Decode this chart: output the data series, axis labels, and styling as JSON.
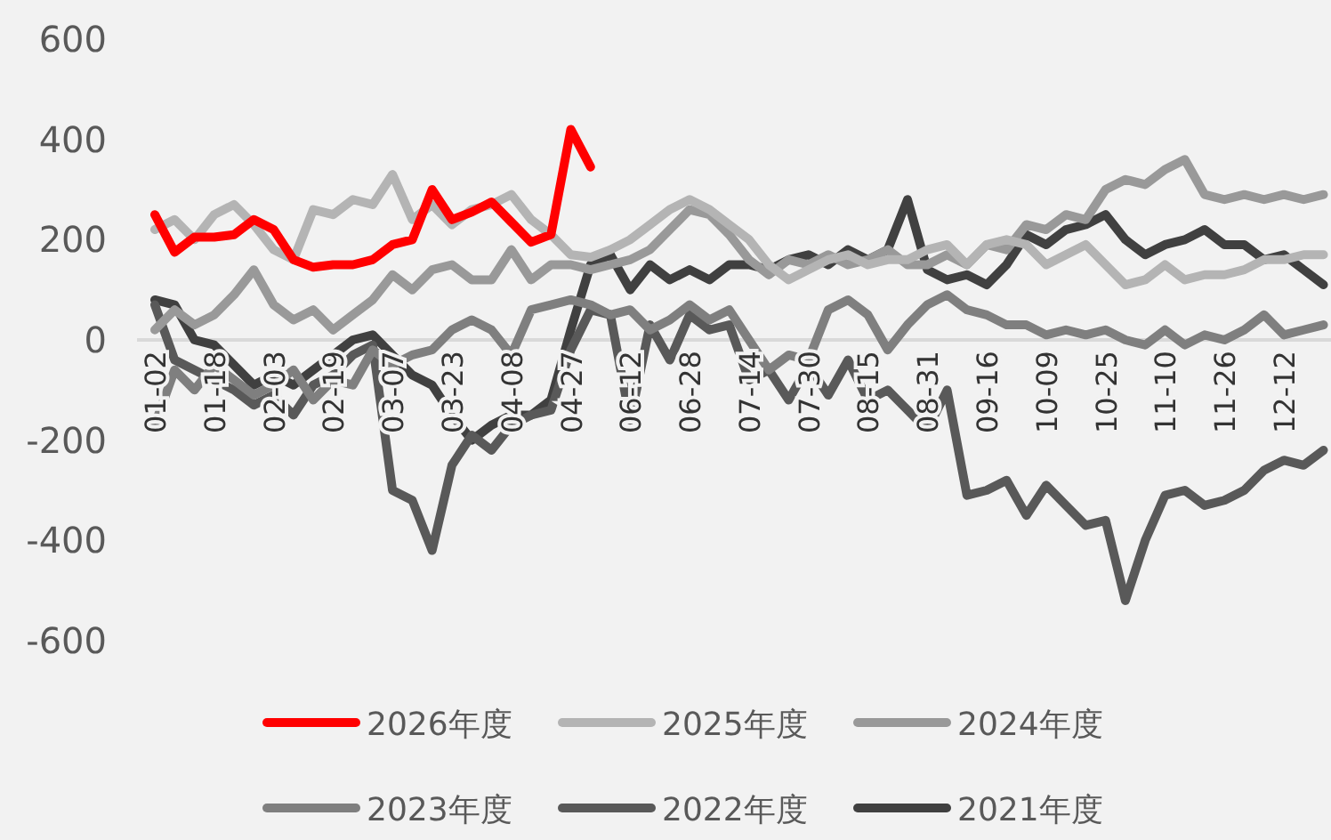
{
  "chart_data": {
    "type": "line",
    "categories": [
      "01-02",
      null,
      null,
      "01-18",
      null,
      null,
      "02-03",
      null,
      null,
      "02-19",
      null,
      null,
      "03-07",
      null,
      null,
      "03-23",
      null,
      null,
      "04-08",
      null,
      null,
      "04-27",
      null,
      null,
      "06-12",
      null,
      null,
      "06-28",
      null,
      null,
      "07-14",
      null,
      null,
      "07-30",
      null,
      null,
      "08-15",
      null,
      null,
      "08-31",
      null,
      null,
      "09-16",
      null,
      null,
      "10-09",
      null,
      null,
      "10-25",
      null,
      null,
      "11-10",
      null,
      null,
      "11-26",
      null,
      null,
      "12-12",
      null,
      null
    ],
    "ylim": [
      -600,
      600
    ],
    "yticks": [
      -600,
      -400,
      -200,
      0,
      200,
      400,
      600
    ],
    "grid": false,
    "legend": "bottom",
    "series": [
      {
        "name": "2026年度",
        "color": "#ff0000",
        "values": [
          250,
          175,
          205,
          205,
          210,
          240,
          220,
          160,
          145,
          150,
          150,
          160,
          190,
          200,
          300,
          240,
          255,
          275,
          235,
          195,
          210,
          420,
          345,
          null,
          null,
          null,
          null,
          null,
          null,
          null,
          null,
          null,
          null,
          null,
          null,
          null,
          null,
          null,
          null,
          null,
          null,
          null,
          null,
          null,
          null,
          null,
          null,
          null,
          null,
          null,
          null,
          null,
          null,
          null,
          null,
          null,
          null,
          null,
          null,
          null
        ]
      },
      {
        "name": "2025年度",
        "color": "#b4b4b4",
        "values": [
          220,
          240,
          200,
          250,
          270,
          230,
          180,
          160,
          260,
          250,
          280,
          270,
          330,
          240,
          270,
          230,
          260,
          270,
          290,
          240,
          210,
          170,
          165,
          180,
          200,
          230,
          260,
          280,
          260,
          230,
          200,
          150,
          120,
          140,
          160,
          170,
          150,
          160,
          160,
          180,
          190,
          150,
          190,
          200,
          190,
          150,
          170,
          190,
          150,
          110,
          120,
          150,
          120,
          130,
          130,
          140,
          160,
          160,
          170,
          170
        ]
      },
      {
        "name": "2024年度",
        "color": "#999999",
        "values": [
          20,
          60,
          30,
          50,
          90,
          140,
          70,
          40,
          60,
          20,
          50,
          80,
          130,
          100,
          140,
          150,
          120,
          120,
          180,
          120,
          150,
          150,
          140,
          150,
          160,
          180,
          220,
          260,
          250,
          210,
          160,
          130,
          160,
          150,
          170,
          150,
          160,
          180,
          150,
          150,
          170,
          150,
          190,
          180,
          230,
          220,
          250,
          240,
          300,
          320,
          310,
          340,
          360,
          290,
          280,
          290,
          280,
          290,
          280,
          290
        ]
      },
      {
        "name": "2023年度",
        "color": "#7f7f7f",
        "values": [
          -170,
          -60,
          -100,
          -50,
          -80,
          -110,
          -90,
          -60,
          -120,
          -80,
          -90,
          -20,
          -50,
          -30,
          -20,
          20,
          40,
          20,
          -30,
          60,
          70,
          80,
          70,
          50,
          60,
          20,
          40,
          70,
          40,
          60,
          0,
          -60,
          -30,
          -40,
          60,
          80,
          50,
          -20,
          30,
          70,
          90,
          60,
          50,
          30,
          30,
          10,
          20,
          10,
          20,
          0,
          -10,
          20,
          -10,
          10,
          0,
          20,
          50,
          10,
          20,
          30
        ]
      },
      {
        "name": "2022年度",
        "color": "#595959",
        "values": [
          70,
          -40,
          -60,
          -80,
          -100,
          -130,
          -110,
          -150,
          -90,
          -70,
          -30,
          -10,
          -300,
          -320,
          -420,
          -250,
          -190,
          -220,
          -170,
          -150,
          -140,
          -20,
          60,
          50,
          -160,
          30,
          -40,
          50,
          20,
          30,
          -80,
          -60,
          -120,
          -50,
          -110,
          -40,
          -120,
          -100,
          -140,
          -180,
          -100,
          -310,
          -300,
          -280,
          -350,
          -290,
          -330,
          -370,
          -360,
          -520,
          -400,
          -310,
          -300,
          -330,
          -320,
          -300,
          -260,
          -240,
          -250,
          -220
        ]
      },
      {
        "name": "2021年度",
        "color": "#404040",
        "values": [
          80,
          70,
          0,
          -10,
          -50,
          -90,
          -70,
          -90,
          -60,
          -30,
          0,
          10,
          -30,
          -70,
          -90,
          -150,
          -200,
          -170,
          -150,
          -150,
          -120,
          20,
          150,
          170,
          100,
          150,
          120,
          140,
          120,
          150,
          150,
          140,
          160,
          170,
          150,
          180,
          160,
          180,
          280,
          140,
          120,
          130,
          110,
          150,
          210,
          190,
          220,
          230,
          250,
          200,
          170,
          190,
          200,
          220,
          190,
          190,
          160,
          170,
          140,
          110
        ]
      }
    ]
  }
}
